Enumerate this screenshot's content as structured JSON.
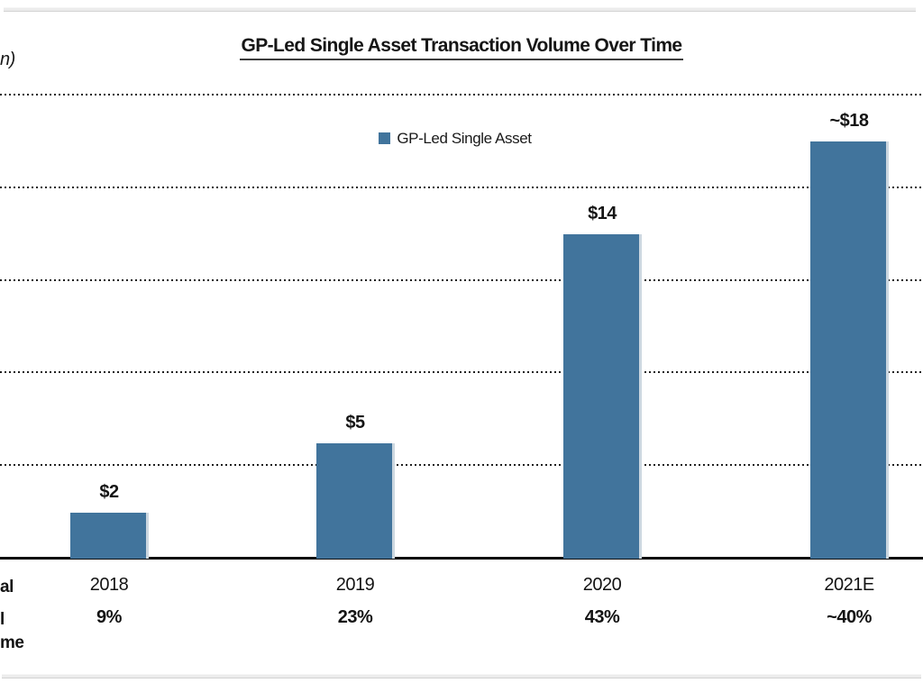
{
  "title": "GP-Led Single Asset Transaction Volume Over Time",
  "axis_unit_fragment": "n)",
  "legend": {
    "label": "GP-Led Single Asset",
    "color": "#41749C"
  },
  "left_row_label_fragments": [
    "al",
    "l",
    "me"
  ],
  "chart_data": {
    "type": "bar",
    "title": "GP-Led Single Asset Transaction Volume Over Time",
    "categories": [
      "2018",
      "2019",
      "2020",
      "2021E"
    ],
    "values": [
      2,
      5,
      14,
      18
    ],
    "bar_labels": [
      "$2",
      "$5",
      "$14",
      "~$18"
    ],
    "pct_of_total_row": [
      "9%",
      "23%",
      "43%",
      "~40%"
    ],
    "legend_entries": [
      "GP-Led Single Asset"
    ],
    "bar_color": "#41749C",
    "xlabel": "",
    "ylabel": "",
    "ylim": [
      0,
      20
    ],
    "gridline_interval": 4,
    "grid": true,
    "grid_style": "dotted",
    "legend_position": "top-center",
    "y_tick_labels_visible": false
  }
}
